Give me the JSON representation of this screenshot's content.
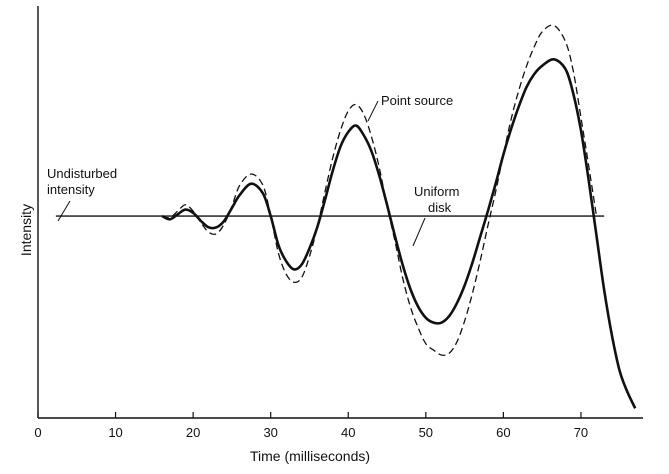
{
  "chart_data": {
    "type": "line",
    "xlabel": "Time (milliseconds)",
    "ylabel": "Intensity",
    "xlim": [
      0,
      78
    ],
    "ylim": [
      -2.5,
      2.6
    ],
    "xticks": [
      0,
      10,
      20,
      30,
      40,
      50,
      60,
      70
    ],
    "xtick_labels": [
      "0",
      "10",
      "20",
      "30",
      "40",
      "50",
      "60",
      "70"
    ],
    "grid": false,
    "legend": "none",
    "undisturbed_intensity": 0,
    "annotations": [
      {
        "text_lines": [
          "Undisturbed",
          "intensity"
        ],
        "refers_to": "undisturbed_intensity"
      },
      {
        "text_lines": [
          "Point source"
        ],
        "refers_to": "point_source"
      },
      {
        "text_lines": [
          "Uniform",
          "disk"
        ],
        "refers_to": "uniform_disk"
      }
    ],
    "series": [
      {
        "key": "point_source",
        "style": "dashed",
        "x": [
          16.0,
          17.0,
          18.0,
          19.0,
          20.0,
          21.0,
          22.0,
          23.0,
          24.0,
          25.0,
          26.0,
          27.5,
          29.0,
          30.0,
          31.0,
          32.0,
          33.0,
          34.0,
          35.0,
          36.0,
          37.0,
          38.0,
          39.0,
          40.0,
          41.0,
          42.0,
          43.0,
          44.0,
          45.0,
          46.0,
          47.0,
          48.0,
          49.0,
          50.0,
          51.0,
          52.0,
          53.0,
          54.0,
          55.0,
          56.0,
          57.0,
          58.0,
          59.0,
          60.0,
          61.0,
          62.0,
          63.0,
          64.0,
          65.0,
          66.5,
          68.0,
          69.0,
          70.0,
          71.0,
          72.0
        ],
        "y": [
          0.0,
          -0.02,
          0.06,
          0.14,
          0.06,
          -0.08,
          -0.2,
          -0.22,
          -0.1,
          0.12,
          0.38,
          0.52,
          0.38,
          0.0,
          -0.46,
          -0.72,
          -0.82,
          -0.76,
          -0.5,
          -0.14,
          0.3,
          0.72,
          1.06,
          1.3,
          1.38,
          1.26,
          0.98,
          0.6,
          0.12,
          -0.3,
          -0.76,
          -1.12,
          -1.38,
          -1.58,
          -1.66,
          -1.72,
          -1.7,
          -1.56,
          -1.3,
          -0.96,
          -0.56,
          -0.12,
          0.3,
          0.76,
          1.2,
          1.56,
          1.86,
          2.1,
          2.28,
          2.36,
          2.16,
          1.8,
          1.22,
          0.62,
          0.0
        ]
      },
      {
        "key": "uniform_disk",
        "style": "solid",
        "x": [
          16.0,
          17.0,
          18.0,
          19.0,
          20.0,
          21.0,
          22.0,
          23.0,
          24.0,
          25.0,
          26.0,
          27.5,
          29.0,
          30.0,
          31.0,
          32.0,
          33.0,
          34.0,
          35.0,
          36.0,
          37.0,
          38.0,
          39.0,
          40.0,
          41.0,
          42.0,
          43.0,
          44.0,
          45.0,
          46.0,
          47.0,
          48.0,
          49.0,
          50.0,
          51.0,
          52.0,
          53.0,
          54.0,
          55.0,
          56.0,
          57.0,
          58.0,
          59.0,
          60.0,
          61.0,
          62.0,
          63.0,
          64.0,
          65.0,
          66.5,
          68.0,
          69.0,
          70.0,
          71.0,
          72.0,
          73.0,
          74.0,
          75.0,
          76.0,
          77.0
        ],
        "y": [
          0.0,
          -0.04,
          0.02,
          0.08,
          0.04,
          -0.06,
          -0.14,
          -0.14,
          -0.06,
          0.1,
          0.26,
          0.4,
          0.28,
          0.0,
          -0.36,
          -0.56,
          -0.66,
          -0.6,
          -0.4,
          -0.14,
          0.2,
          0.56,
          0.86,
          1.04,
          1.12,
          1.0,
          0.8,
          0.5,
          0.14,
          -0.24,
          -0.6,
          -0.9,
          -1.12,
          -1.26,
          -1.32,
          -1.32,
          -1.24,
          -1.08,
          -0.86,
          -0.58,
          -0.26,
          0.06,
          0.4,
          0.76,
          1.08,
          1.36,
          1.6,
          1.76,
          1.86,
          1.94,
          1.82,
          1.52,
          1.06,
          0.44,
          -0.24,
          -0.92,
          -1.48,
          -1.92,
          -2.18,
          -2.38
        ]
      }
    ]
  }
}
